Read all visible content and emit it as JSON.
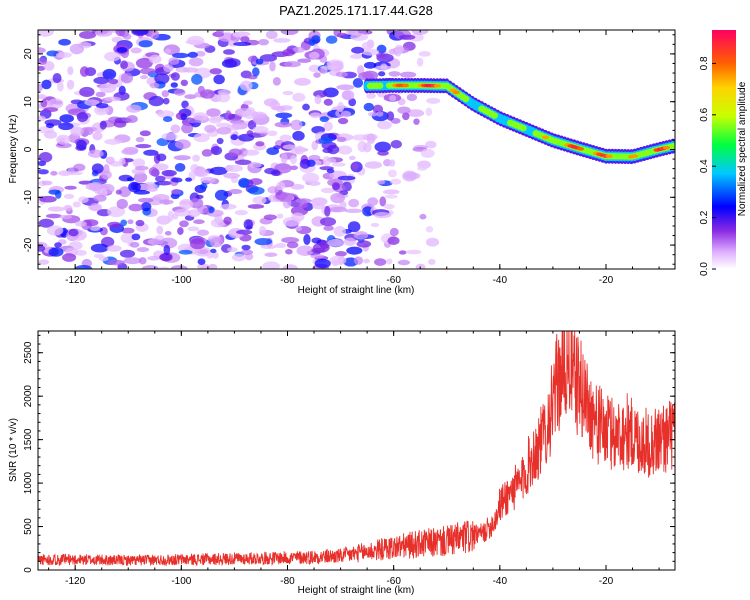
{
  "title": "PAZ1.2025.171.17.44.G28",
  "chart_data": [
    {
      "type": "heatmap",
      "xlabel": "Height of straight line (km)",
      "ylabel": "Frequency (Hz)",
      "xlim": [
        -127,
        -7
      ],
      "ylim": [
        -25,
        25
      ],
      "xticks": [
        -120,
        -100,
        -80,
        -60,
        -40,
        -20
      ],
      "yticks": [
        -20,
        -10,
        0,
        10,
        20
      ],
      "colorbar": {
        "label": "Normalized spectral amplitude",
        "range": [
          0,
          0.93
        ],
        "ticks": [
          0.0,
          0.2,
          0.4,
          0.6,
          0.8
        ]
      },
      "ridge": {
        "x": [
          -65,
          -60,
          -55,
          -50,
          -45,
          -40,
          -35,
          -30,
          -25,
          -20,
          -15,
          -10,
          -7
        ],
        "y": [
          13.3,
          13.4,
          13.4,
          13.3,
          9.5,
          6.5,
          4.2,
          1.9,
          0.2,
          -1.4,
          -1.5,
          0.0,
          0.8
        ],
        "amplitude": [
          0.5,
          0.8,
          0.9,
          0.9,
          0.55,
          0.65,
          0.6,
          0.8,
          0.9,
          0.85,
          0.75,
          0.9,
          0.75
        ]
      },
      "noise_region": {
        "x_range": [
          -127,
          -62
        ],
        "amplitude_range": [
          0.05,
          0.3
        ]
      }
    },
    {
      "type": "line",
      "xlabel": "Height of straight line (km)",
      "ylabel": "SNR (10 * v/v)",
      "xlim": [
        -127,
        -7
      ],
      "ylim": [
        0,
        2750
      ],
      "xticks": [
        -120,
        -100,
        -80,
        -60,
        -40,
        -20
      ],
      "yticks": [
        0,
        500,
        1000,
        1500,
        2000,
        2500
      ],
      "color": "#e8302b",
      "x": [
        -127,
        -120,
        -110,
        -100,
        -90,
        -80,
        -70,
        -65,
        -60,
        -55,
        -50,
        -46,
        -43,
        -41,
        -40,
        -38,
        -36,
        -34,
        -32,
        -30,
        -29,
        -28,
        -27,
        -26,
        -25,
        -24,
        -22,
        -20,
        -18,
        -16,
        -14,
        -12,
        -10,
        -8,
        -7
      ],
      "y": [
        120,
        120,
        110,
        120,
        130,
        140,
        160,
        210,
        260,
        300,
        330,
        380,
        430,
        560,
        750,
        900,
        1000,
        1300,
        1500,
        1900,
        2200,
        2300,
        2400,
        2200,
        2100,
        2000,
        1700,
        1600,
        1550,
        1600,
        1500,
        1450,
        1500,
        1550,
        1600
      ]
    }
  ]
}
